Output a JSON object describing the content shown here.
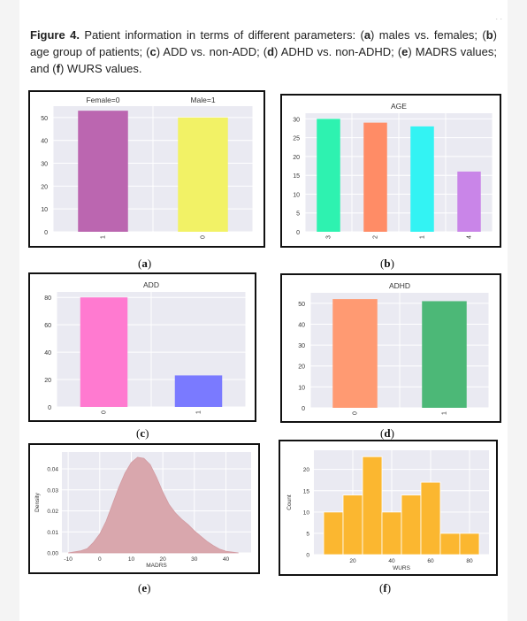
{
  "caption": {
    "figure": "Figure 4.",
    "pre": "Patient information in terms of different parameters: (",
    "a": "a",
    "t1": ") males vs. females; (",
    "b": "b",
    "t2": ") age group of patients; (",
    "c": "c",
    "t3": ") ADD vs. non-ADD; (",
    "d": "d",
    "t4": ") ADHD vs. non-ADHD; (",
    "e": "e",
    "t5": ") MADRS values; and (",
    "f": "f",
    "t6": ") WURS values."
  },
  "corner_mark": ". .",
  "sublabels": {
    "a": "a",
    "b": "b",
    "c": "c",
    "d": "d",
    "e": "e",
    "f": "f"
  },
  "chart_data": [
    {
      "id": "a",
      "type": "bar",
      "title": "",
      "top_labels": [
        "Female=0",
        "Male=1"
      ],
      "categories": [
        "1",
        "0"
      ],
      "values": [
        53,
        50
      ],
      "colors": [
        "#bb66b0",
        "#f2f266"
      ],
      "yticks": [
        0,
        10,
        20,
        30,
        40,
        50
      ],
      "ylim": [
        0,
        55
      ],
      "grid": true
    },
    {
      "id": "b",
      "type": "bar",
      "title": "AGE",
      "categories": [
        "3",
        "2",
        "1",
        "4"
      ],
      "values": [
        30,
        29,
        28,
        16
      ],
      "colors": [
        "#2ef2b0",
        "#ff8c66",
        "#33f3f3",
        "#c985e8"
      ],
      "yticks": [
        0,
        5,
        10,
        15,
        20,
        25,
        30
      ],
      "ylim": [
        0,
        31.5
      ],
      "grid": true
    },
    {
      "id": "c",
      "type": "bar",
      "title": "ADD",
      "categories": [
        "0",
        "1"
      ],
      "values": [
        80,
        23
      ],
      "colors": [
        "#ff7ad0",
        "#7a7aff"
      ],
      "yticks": [
        0,
        20,
        40,
        60,
        80
      ],
      "ylim": [
        0,
        84
      ],
      "grid": true
    },
    {
      "id": "d",
      "type": "bar",
      "title": "ADHD",
      "categories": [
        "0",
        "1"
      ],
      "values": [
        52,
        51
      ],
      "colors": [
        "#ff9a72",
        "#4cb877"
      ],
      "yticks": [
        0,
        10,
        20,
        30,
        40,
        50
      ],
      "ylim": [
        0,
        55
      ],
      "grid": true
    },
    {
      "id": "e",
      "type": "area",
      "title": "",
      "xlabel": "MADRS",
      "ylabel": "Density",
      "x": [
        -10,
        -6,
        -4,
        -2,
        0,
        2,
        4,
        6,
        8,
        10,
        12,
        14,
        16,
        18,
        20,
        22,
        24,
        26,
        28,
        30,
        32,
        34,
        36,
        38,
        40,
        44
      ],
      "y": [
        0.0,
        0.001,
        0.002,
        0.005,
        0.009,
        0.015,
        0.023,
        0.031,
        0.038,
        0.043,
        0.0455,
        0.045,
        0.042,
        0.036,
        0.029,
        0.023,
        0.019,
        0.016,
        0.0135,
        0.0105,
        0.008,
        0.0055,
        0.0035,
        0.0018,
        0.0008,
        0.0
      ],
      "xticks": [
        -10,
        0,
        10,
        20,
        30,
        40
      ],
      "yticks": [
        0.0,
        0.01,
        0.02,
        0.03,
        0.04
      ],
      "ytick_labels": [
        "0.00",
        "0.01",
        "0.02",
        "0.03",
        "0.04"
      ],
      "xlim": [
        -12,
        48
      ],
      "ylim": [
        0,
        0.048
      ],
      "color": "#d9a7ad",
      "grid": true
    },
    {
      "id": "f",
      "type": "bar",
      "title": "",
      "xlabel": "WURS",
      "ylabel": "Count",
      "bin_edges": [
        5,
        15,
        25,
        35,
        45,
        55,
        65,
        75,
        85
      ],
      "values": [
        10,
        14,
        23,
        10,
        14,
        17,
        5,
        5
      ],
      "xticks": [
        20,
        40,
        60,
        80
      ],
      "yticks": [
        0,
        5,
        10,
        15,
        20
      ],
      "xlim": [
        0,
        90
      ],
      "ylim": [
        0,
        24.5
      ],
      "color": "#fbb730",
      "grid": true
    }
  ]
}
